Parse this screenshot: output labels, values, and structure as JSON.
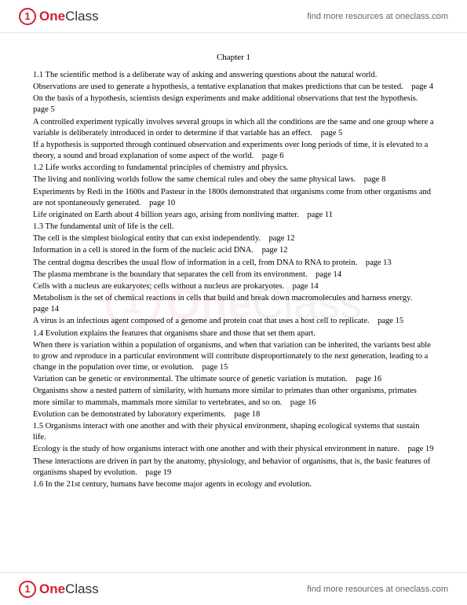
{
  "header": {
    "logo_one": "One",
    "logo_class": "Class",
    "link_text": "find more resources at oneclass.com"
  },
  "title": "Chapter 1",
  "paragraphs": [
    "1.1 The scientific method is a deliberate way of asking and answering questions about the natural world.",
    "Observations are used to generate a hypothesis, a tentative explanation that makes predictions that can be tested. page 4",
    "On the basis of a hypothesis, scientists design experiments and make additional observations that test the hypothesis. page 5",
    "A controlled experiment typically involves several groups in which all the conditions are the same and one group where a variable is deliberately introduced in order to determine if that variable has an effect. page 5",
    "If a hypothesis is supported through continued observation and experiments over long periods of time, it is elevated to a theory, a sound and broad explanation of some aspect of the world. page 6",
    "1.2 Life works according to fundamental principles of chemistry and physics.",
    "The living and nonliving worlds follow the same chemical rules and obey the same physical laws. page 8",
    "Experiments by Redi in the 1600s and Pasteur in the 1800s demonstrated that organisms come from other organisms and are not spontaneously generated. page 10",
    "Life originated on Earth about 4 billion years ago, arising from nonliving matter. page 11",
    "1.3 The fundamental unit of life is the cell.",
    "The cell is the simplest biological entity that can exist independently. page 12",
    "Information in a cell is stored in the form of the nucleic acid DNA. page 12",
    "The central dogma describes the usual flow of information in a cell, from DNA to RNA to protein. page 13",
    "The plasma membrane is the boundary that separates the cell from its environment. page 14",
    "Cells with a nucleus are eukaryotes; cells without a nucleus are prokaryotes. page 14",
    "Metabolism is the set of chemical reactions in cells that build and break down macromolecules and harness energy. page 14",
    "A virus is an infectious agent composed of a genome and protein coat that uses a host cell to replicate. page 15",
    "1.4 Evolution explains the features that organisms share and those that set them apart.",
    "When there is variation within a population of organisms, and when that variation can be inherited, the variants best able to grow and reproduce in a particular environment will contribute disproportionately to the next generation, leading to a change in the population over time, or evolution. page 15",
    "Variation can be genetic or environmental. The ultimate source of genetic variation is mutation. page 16",
    "Organisms show a nested pattern of similarity, with humans more similar to primates than other organisms, primates more similar to mammals, mammals more similar to vertebrates, and so on. page 16",
    "Evolution can be demonstrated by laboratory experiments. page 18",
    "1.5 Organisms interact with one another and with their physical environment, shaping ecological systems that sustain life.",
    "Ecology is the study of how organisms interact with one another and with their physical environment in nature. page 19",
    "These interactions are driven in part by the anatomy, physiology, and behavior of organisms, that is, the basic features of organisms shaped by evolution. page 19",
    "1.6 In the 21st century, humans have become major agents in ecology and evolution."
  ],
  "footer": {
    "logo_one": "One",
    "logo_class": "Class",
    "link_text": "find more resources at oneclass.com"
  }
}
